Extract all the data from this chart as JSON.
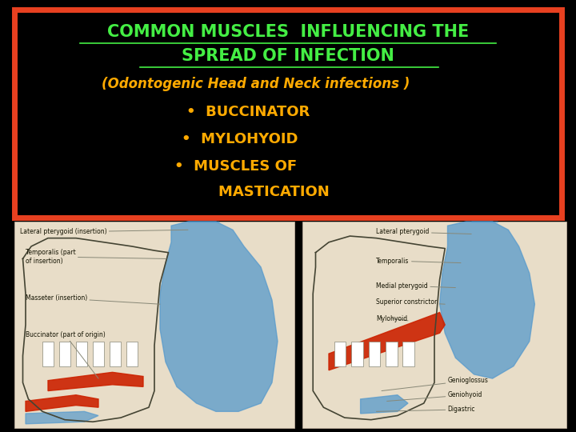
{
  "bg_color": "#000000",
  "border_color": "#e84020",
  "border_linewidth": 5,
  "title_line1": "COMMON MUSCLES  INFLUENCING THE",
  "title_line2": "SPREAD OF INFECTION",
  "title_color": "#44ee44",
  "title_fontsize": 15,
  "subtitle": "(Odontogenic Head and Neck infections )",
  "subtitle_color": "#ffaa00",
  "subtitle_fontsize": 12,
  "bullet1": "•  BUCCINATOR",
  "bullet2": "•  MYLOHYOID",
  "bullet3": "•  MUSCLES OF",
  "bullet4": "    MASTICATION",
  "bullet_color": "#ffaa00",
  "bullet_fontsize": 13,
  "image_bg": "#e8ddc8",
  "figsize": [
    7.2,
    5.4
  ],
  "dpi": 100
}
